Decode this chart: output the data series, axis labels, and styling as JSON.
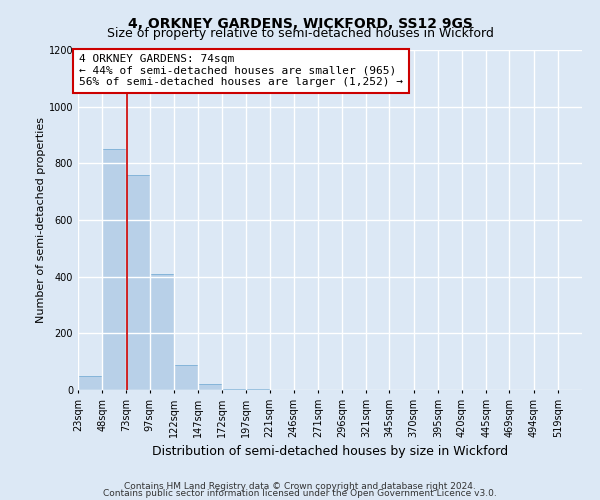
{
  "title": "4, ORKNEY GARDENS, WICKFORD, SS12 9GS",
  "subtitle": "Size of property relative to semi-detached houses in Wickford",
  "xlabel": "Distribution of semi-detached houses by size in Wickford",
  "ylabel": "Number of semi-detached properties",
  "bin_labels": [
    "23sqm",
    "48sqm",
    "73sqm",
    "97sqm",
    "122sqm",
    "147sqm",
    "172sqm",
    "197sqm",
    "221sqm",
    "246sqm",
    "271sqm",
    "296sqm",
    "321sqm",
    "345sqm",
    "370sqm",
    "395sqm",
    "420sqm",
    "445sqm",
    "469sqm",
    "494sqm",
    "519sqm"
  ],
  "bin_edges": [
    23,
    48,
    73,
    97,
    122,
    147,
    172,
    197,
    221,
    246,
    271,
    296,
    321,
    345,
    370,
    395,
    420,
    445,
    469,
    494,
    519
  ],
  "bar_values": [
    50,
    850,
    760,
    410,
    90,
    20,
    5,
    5,
    0,
    0,
    0,
    0,
    0,
    0,
    0,
    0,
    0,
    0,
    0,
    0
  ],
  "bar_color": "#b8d0e8",
  "bar_edge_color": "#7aaed6",
  "property_value": 74,
  "red_line_color": "#cc0000",
  "annotation_line1": "4 ORKNEY GARDENS: 74sqm",
  "annotation_line2": "← 44% of semi-detached houses are smaller (965)",
  "annotation_line3": "56% of semi-detached houses are larger (1,252) →",
  "annotation_box_color": "#ffffff",
  "annotation_box_edge": "#cc0000",
  "ylim": [
    0,
    1200
  ],
  "yticks": [
    0,
    200,
    400,
    600,
    800,
    1000,
    1200
  ],
  "footer1": "Contains HM Land Registry data © Crown copyright and database right 2024.",
  "footer2": "Contains public sector information licensed under the Open Government Licence v3.0.",
  "bg_color": "#dce8f5",
  "plot_bg_color": "#dce8f5",
  "grid_color": "#ffffff",
  "title_fontsize": 10,
  "subtitle_fontsize": 9,
  "xlabel_fontsize": 9,
  "ylabel_fontsize": 8,
  "tick_fontsize": 7,
  "annotation_fontsize": 8,
  "footer_fontsize": 6.5
}
